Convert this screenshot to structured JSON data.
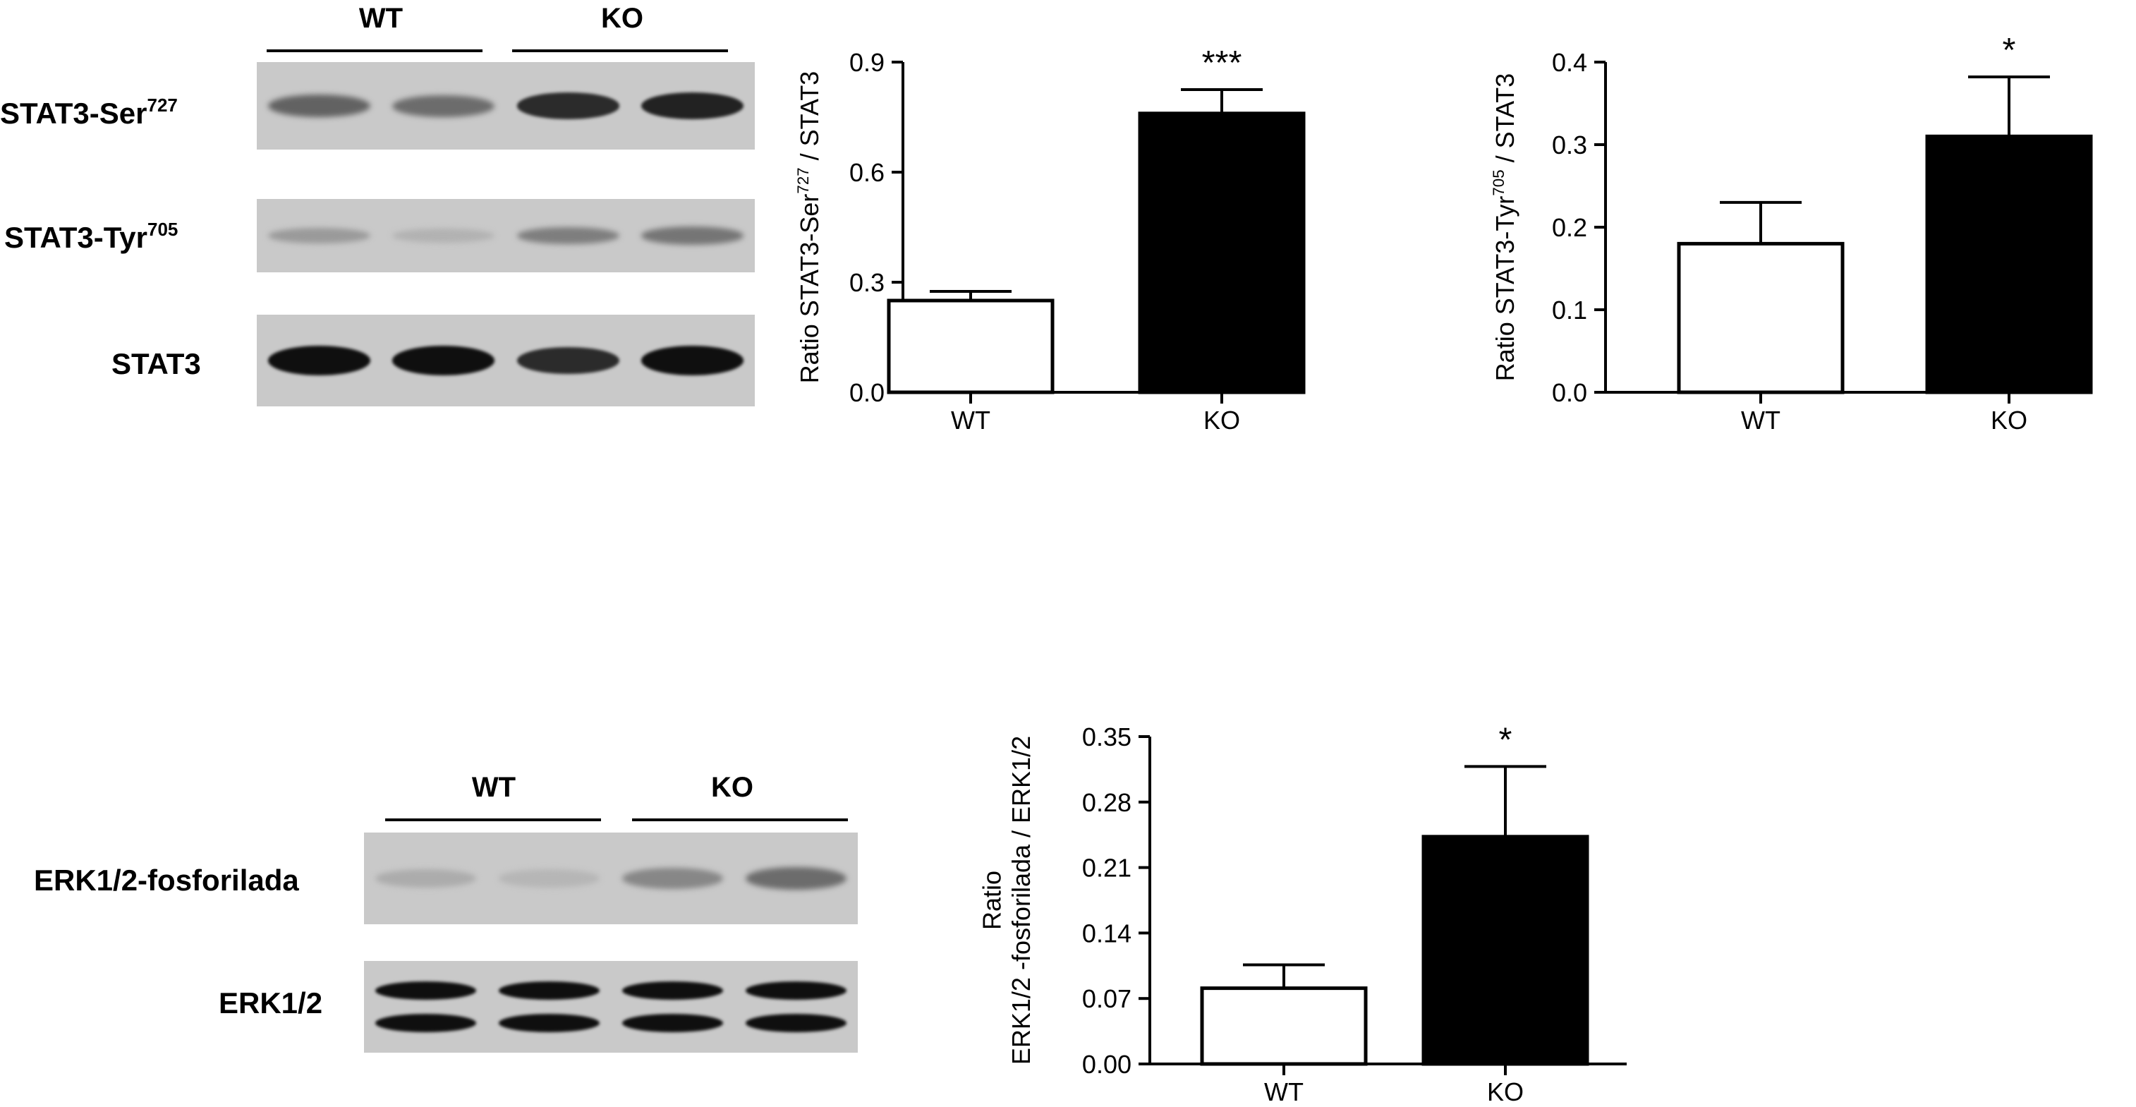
{
  "blots": [
    {
      "groups": [
        "WT",
        "KO"
      ],
      "rows": [
        {
          "label": "STAT3-Ser",
          "sup": "727",
          "intensities": [
            0.55,
            0.5,
            0.85,
            0.9
          ]
        },
        {
          "label": "STAT3-Tyr",
          "sup": "705",
          "intensities": [
            0.25,
            0.12,
            0.4,
            0.45
          ]
        },
        {
          "label": "STAT3",
          "sup": "",
          "intensities": [
            1.0,
            1.0,
            0.85,
            1.0
          ]
        }
      ]
    },
    {
      "groups": [
        "WT",
        "KO"
      ],
      "rows": [
        {
          "label": "ERK1/2-fosforilada",
          "sup": "",
          "intensities": [
            0.15,
            0.1,
            0.35,
            0.5
          ]
        },
        {
          "label": "ERK1/2",
          "sup": "",
          "intensities": [
            1.0,
            1.0,
            1.0,
            1.0
          ],
          "double_band": true
        }
      ]
    }
  ],
  "chart_data": [
    {
      "type": "bar",
      "categories": [
        "WT",
        "KO"
      ],
      "values": [
        0.25,
        0.76
      ],
      "errors": [
        0.025,
        0.065
      ],
      "colors": [
        "#ffffff",
        "#000000"
      ],
      "significance": [
        "",
        "***"
      ],
      "ylabel_main": "Ratio STAT3-Ser",
      "ylabel_sup": "727",
      "ylabel_tail": " /  STAT3",
      "ylim": [
        0,
        0.9
      ],
      "yticks": [
        "0.0",
        "0.3",
        "0.6",
        "0.9"
      ],
      "ytick_values": [
        0,
        0.3,
        0.6,
        0.9
      ]
    },
    {
      "type": "bar",
      "categories": [
        "WT",
        "KO"
      ],
      "values": [
        0.18,
        0.31
      ],
      "errors": [
        0.05,
        0.072
      ],
      "colors": [
        "#ffffff",
        "#000000"
      ],
      "significance": [
        "",
        "*"
      ],
      "ylabel_main": "Ratio STAT3-Tyr",
      "ylabel_sup": "705",
      "ylabel_tail": " /  STAT3",
      "ylim": [
        0,
        0.4
      ],
      "yticks": [
        "0.0",
        "0.1",
        "0.2",
        "0.3",
        "0.4"
      ],
      "ytick_values": [
        0,
        0.1,
        0.2,
        0.3,
        0.4
      ]
    },
    {
      "type": "bar",
      "categories": [
        "WT",
        "KO"
      ],
      "values": [
        0.081,
        0.243
      ],
      "errors": [
        0.025,
        0.075
      ],
      "colors": [
        "#ffffff",
        "#000000"
      ],
      "significance": [
        "",
        "*"
      ],
      "ylabel_line1": "Ratio",
      "ylabel_line2": "ERK1/2 -fosforilada /  ERK1/2",
      "ylim": [
        0,
        0.35
      ],
      "yticks": [
        "0.00",
        "0.07",
        "0.14",
        "0.21",
        "0.28",
        "0.35"
      ],
      "ytick_values": [
        0,
        0.07,
        0.14,
        0.21,
        0.28,
        0.35
      ]
    }
  ]
}
